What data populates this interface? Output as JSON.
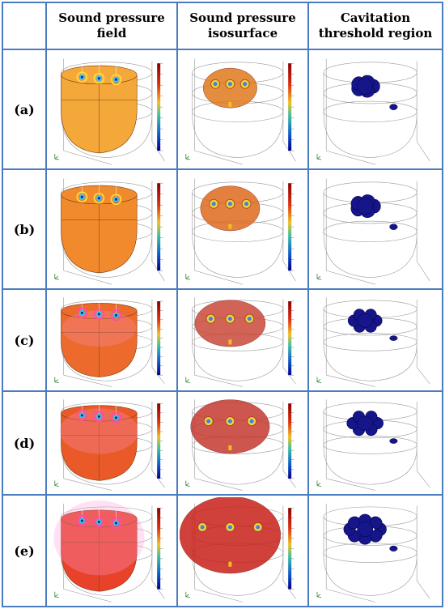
{
  "columns": [
    {
      "id": "field",
      "title_line1": "Sound pressure",
      "title_line2": "field"
    },
    {
      "id": "iso",
      "title_line1": "Sound pressure",
      "title_line2": "isosurface"
    },
    {
      "id": "cav",
      "title_line1": "Cavitation",
      "title_line2": "threshold region"
    }
  ],
  "rows": [
    {
      "label": "(a)",
      "sources": 3,
      "spread": 0.15,
      "field_color": "#f4a83a",
      "iso_color": "#e07a1e"
    },
    {
      "label": "(b)",
      "sources": 3,
      "spread": 0.25,
      "field_color": "#f08a2c",
      "iso_color": "#e06a1e"
    },
    {
      "label": "(c)",
      "sources": 3,
      "spread": 0.45,
      "field_color": "#ec6a2c",
      "iso_color": "#c94a3a"
    },
    {
      "label": "(d)",
      "sources": 3,
      "spread": 0.6,
      "field_color": "#ea5a28",
      "iso_color": "#c53a30"
    },
    {
      "label": "(e)",
      "sources": 3,
      "spread": 1.0,
      "field_color": "#e8432a",
      "iso_color": "#c8201a"
    }
  ],
  "colors": {
    "border": "#4a7cc0",
    "cavitation": "#16168a",
    "wireframe": "#9a9a9a",
    "colorbar_top": "#8b0000",
    "colorbar_bottom": "#00008b"
  }
}
